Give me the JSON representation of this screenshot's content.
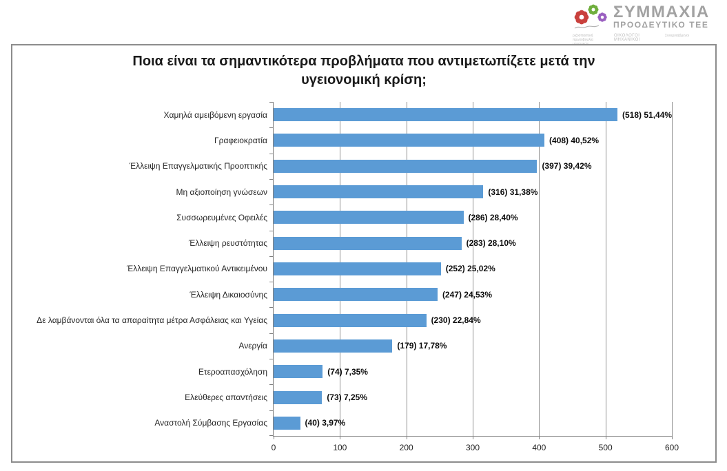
{
  "brand": {
    "name_line1": "ΣΥΜΜΑΧΙΑ",
    "name_line2": "ΠΡΟΟΔΕΥΤΙΚΟ ΤΕΕ",
    "member_groups": [
      "ριζοσπαστική πρωτοβουλία μηχανικών",
      "ΟΙΚΟΛΟΓΟΙ ΜΗΧΑΝΙΚΟΙ",
      "Συνεργαζόμενοι"
    ],
    "gear_colors": [
      "#c9413d",
      "#6fae3d",
      "#9a5fc0"
    ],
    "text_color": "#a2a2a2"
  },
  "chart_data": {
    "type": "bar",
    "orientation": "horizontal",
    "title": "Ποια είναι τα σημαντικότερα προβλήματα που αντιμετωπίζετε μετά την υγειονομική κρίση;",
    "title_line1": "Ποια είναι τα σημαντικότερα προβλήματα που αντιμετωπίζετε μετά την",
    "title_line2": "υγειονομική κρίση;",
    "categories": [
      "Χαμηλά αμειβόμενη εργασία",
      "Γραφειοκρατία",
      "Έλλειψη Επαγγελματικής  Προοπτικής",
      "Μη αξιοποίηση γνώσεων",
      "Συσσωρευμένες Οφειλές",
      "Έλλειψη ρευστότητας",
      "Έλλειψη Επαγγελματικού  Αντικειμένου",
      "Έλλειψη Δικαιοσύνης",
      "Δε λαμβάνονται όλα τα απαραίτητα  μέτρα Ασφάλειας και Υγείας",
      "Ανεργία",
      "Ετεροαπασχόληση",
      "Ελεύθερες απαντήσεις",
      "Αναστολή Σύμβασης  Εργασίας"
    ],
    "values": [
      518,
      408,
      397,
      316,
      286,
      283,
      252,
      247,
      230,
      179,
      74,
      73,
      40
    ],
    "percentages": [
      51.44,
      40.52,
      39.42,
      31.38,
      28.4,
      28.1,
      25.02,
      24.53,
      22.84,
      17.78,
      7.35,
      7.25,
      3.97
    ],
    "data_labels": [
      "(518) 51,44%",
      "(408) 40,52%",
      "(397) 39,42%",
      "(316) 31,38%",
      "(286) 28,40%",
      "(283) 28,10%",
      "(252) 25,02%",
      "(247) 24,53%",
      "(230) 22,84%",
      "(179) 17,78%",
      "(74) 7,35%",
      "(73) 7,25%",
      "(40) 3,97%"
    ],
    "xlim": [
      0,
      600
    ],
    "x_ticks": [
      0,
      100,
      200,
      300,
      400,
      500,
      600
    ],
    "xlabel": "",
    "ylabel": "",
    "grid": true,
    "legend": false,
    "bar_color": "#5b9bd5",
    "gridline_color": "#8f8f8f",
    "axis_color": "#7f7f7f"
  }
}
